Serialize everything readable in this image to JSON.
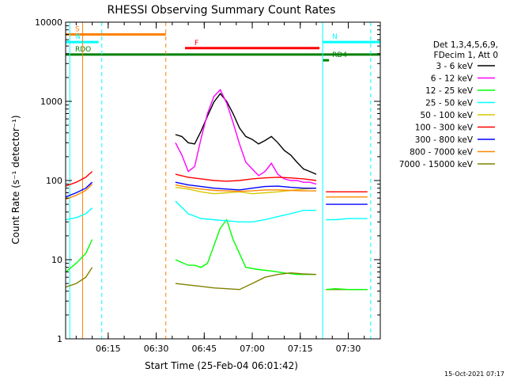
{
  "chart_data": {
    "type": "line",
    "title": "RHESSI Observing Summary Count Rates",
    "xlabel": "Start Time (25-Feb-04 06:01:42)",
    "ylabel": "Count Rate (s⁻¹ detector⁻¹)",
    "y_scale": "log",
    "xlim": [
      "06:01:42",
      "07:40:00"
    ],
    "ylim": [
      1,
      10000
    ],
    "x_ticks": [
      "06:15",
      "06:30",
      "06:45",
      "07:00",
      "07:15",
      "07:30"
    ],
    "y_ticks": [
      "1",
      "10",
      "100",
      "1000",
      "10000"
    ],
    "legend_header": [
      "Det 1,3,4,5,6,9,",
      "FDecim 1, Att 0"
    ],
    "series": [
      {
        "name": "3 - 6 keV",
        "color": "#000000",
        "x": [
          "06:36:00",
          "06:38:00",
          "06:40:00",
          "06:42:00",
          "06:44:00",
          "06:46:00",
          "06:48:00",
          "06:50:00",
          "06:52:00",
          "06:54:00",
          "06:56:00",
          "06:58:00",
          "07:00:00",
          "07:02:00",
          "07:04:00",
          "07:06:00",
          "07:08:00",
          "07:10:00",
          "07:12:00",
          "07:14:00",
          "07:16:00",
          "07:18:00",
          "07:20:00"
        ],
        "y": [
          380,
          360,
          300,
          290,
          420,
          650,
          980,
          1250,
          1000,
          700,
          460,
          360,
          330,
          290,
          320,
          360,
          300,
          240,
          210,
          170,
          140,
          130,
          120
        ]
      },
      {
        "name": "6 - 12 keV",
        "color": "#ff00ff",
        "x": [
          "06:36:00",
          "06:38:00",
          "06:40:00",
          "06:42:00",
          "06:44:00",
          "06:46:00",
          "06:48:00",
          "06:50:00",
          "06:52:00",
          "06:54:00",
          "06:56:00",
          "06:58:00",
          "07:00:00",
          "07:02:00",
          "07:04:00",
          "07:06:00",
          "07:08:00",
          "07:10:00",
          "07:12:00",
          "07:14:00",
          "07:16:00",
          "07:18:00",
          "07:20:00"
        ],
        "y": [
          300,
          210,
          130,
          150,
          340,
          700,
          1150,
          1400,
          950,
          540,
          290,
          170,
          140,
          115,
          130,
          165,
          120,
          105,
          100,
          100,
          95,
          95,
          90
        ]
      },
      {
        "name": "12 - 25 keV",
        "color": "#00ff00",
        "x": [
          "06:36:00",
          "06:40:00",
          "06:42:00",
          "06:44:00",
          "06:46:00",
          "06:48:00",
          "06:50:00",
          "06:52:00",
          "06:54:00",
          "06:58:00",
          "07:02:00",
          "07:06:00",
          "07:10:00",
          "07:14:00",
          "07:18:00",
          "07:20:00"
        ],
        "y": [
          10,
          8.5,
          8.5,
          8,
          9,
          15,
          25,
          32,
          18,
          8,
          7.5,
          7.2,
          6.8,
          6.5,
          6.5,
          6.5
        ]
      },
      {
        "name": "25 - 50 keV",
        "color": "#00ffff",
        "x": [
          "06:36:00",
          "06:40:00",
          "06:44:00",
          "06:48:00",
          "06:52:00",
          "06:56:00",
          "07:00:00",
          "07:04:00",
          "07:08:00",
          "07:12:00",
          "07:16:00",
          "07:20:00"
        ],
        "y": [
          55,
          38,
          33,
          32,
          31,
          30,
          30,
          32,
          35,
          38,
          42,
          42
        ]
      },
      {
        "name": "50 - 100 keV",
        "color": "#d8c800",
        "x": [
          "06:36:00",
          "06:40:00",
          "06:44:00",
          "06:48:00",
          "06:52:00",
          "06:56:00",
          "07:00:00",
          "07:04:00",
          "07:08:00",
          "07:12:00",
          "07:16:00",
          "07:20:00"
        ],
        "y": [
          82,
          78,
          72,
          68,
          70,
          72,
          68,
          70,
          72,
          75,
          78,
          80
        ]
      },
      {
        "name": "100 - 300 keV",
        "color": "#ff0000",
        "x": [
          "06:36:00",
          "06:40:00",
          "06:44:00",
          "06:48:00",
          "06:52:00",
          "06:56:00",
          "07:00:00",
          "07:04:00",
          "07:08:00",
          "07:12:00",
          "07:16:00",
          "07:20:00"
        ],
        "y": [
          120,
          110,
          105,
          100,
          98,
          100,
          105,
          108,
          110,
          108,
          105,
          100
        ]
      },
      {
        "name": "300 - 800 keV",
        "color": "#0000ff",
        "x": [
          "06:36:00",
          "06:40:00",
          "06:44:00",
          "06:48:00",
          "06:52:00",
          "06:56:00",
          "07:00:00",
          "07:04:00",
          "07:08:00",
          "07:12:00",
          "07:16:00",
          "07:20:00"
        ],
        "y": [
          95,
          88,
          84,
          80,
          78,
          76,
          80,
          84,
          85,
          82,
          80,
          80
        ]
      },
      {
        "name": "800 - 7000 keV",
        "color": "#ff8800",
        "x": [
          "06:36:00",
          "06:40:00",
          "06:44:00",
          "06:48:00",
          "06:52:00",
          "06:56:00",
          "07:00:00",
          "07:04:00",
          "07:08:00",
          "07:12:00",
          "07:16:00",
          "07:20:00"
        ],
        "y": [
          88,
          82,
          78,
          75,
          74,
          73,
          74,
          76,
          76,
          75,
          74,
          74
        ]
      },
      {
        "name": "7000 - 15000 keV",
        "color": "#808000",
        "x": [
          "06:36:00",
          "06:40:00",
          "06:44:00",
          "06:48:00",
          "06:52:00",
          "06:56:00",
          "07:00:00",
          "07:04:00",
          "07:08:00",
          "07:12:00",
          "07:16:00",
          "07:20:00"
        ],
        "y": [
          5,
          4.8,
          4.6,
          4.4,
          4.3,
          4.2,
          5,
          6,
          6.5,
          6.8,
          6.6,
          6.5
        ]
      }
    ],
    "pre_gap_data": {
      "x": [
        "06:01:42",
        "06:05:00",
        "06:08:00",
        "06:10:00"
      ],
      "series": [
        {
          "name": "100 - 300 keV",
          "color": "#ff0000",
          "y": [
            85,
            95,
            110,
            130
          ]
        },
        {
          "name": "300 - 800 keV",
          "color": "#0000ff",
          "y": [
            62,
            70,
            80,
            95
          ]
        },
        {
          "name": "800 - 7000 keV",
          "color": "#ff8800",
          "y": [
            58,
            65,
            75,
            90
          ]
        },
        {
          "name": "25 - 50 keV",
          "color": "#00ffff",
          "y": [
            32,
            34,
            38,
            45
          ]
        },
        {
          "name": "12 - 25 keV",
          "color": "#00ff00",
          "y": [
            7,
            9,
            12,
            18
          ]
        },
        {
          "name": "7000 - 15000 keV",
          "color": "#808000",
          "y": [
            4.5,
            5,
            6,
            8
          ]
        }
      ]
    },
    "post_data": {
      "x": [
        "07:23:00",
        "07:26:00",
        "07:30:00",
        "07:34:00",
        "07:36:00"
      ],
      "series": [
        {
          "name": "100 - 300 keV",
          "color": "#ff0000",
          "y": [
            72,
            72,
            72,
            72,
            72
          ]
        },
        {
          "name": "800 - 7000 keV",
          "color": "#ff8800",
          "y": [
            62,
            62,
            62,
            62,
            62
          ]
        },
        {
          "name": "300 - 800 keV",
          "color": "#0000ff",
          "y": [
            50,
            50,
            50,
            50,
            50
          ]
        },
        {
          "name": "25 - 50 keV",
          "color": "#00ffff",
          "y": [
            32,
            32,
            33,
            33,
            33
          ]
        },
        {
          "name": "7000 - 15000 keV",
          "color": "#808000",
          "y": [
            4.2,
            4.2,
            4.2,
            4.2,
            4.2
          ]
        },
        {
          "name": "12 - 25 keV",
          "color": "#00ff00",
          "y": [
            4.2,
            4.3,
            4.2,
            4.2,
            4.2
          ]
        }
      ]
    },
    "flags": [
      {
        "label": "S",
        "color": "#ff8000",
        "y": 7000,
        "x_start": "06:01:42",
        "x_end": "06:33:00"
      },
      {
        "label": "N",
        "color": "#00ffff",
        "y": 5600,
        "x_start": "06:01:42",
        "x_end": "06:12:00"
      },
      {
        "label": "N",
        "color": "#00ffff",
        "y": 5600,
        "x_start": "07:22:00",
        "x_end": "07:40:00"
      },
      {
        "label": "F",
        "color": "#ff0000",
        "y": 4700,
        "x_start": "06:39:00",
        "x_end": "07:21:00"
      },
      {
        "label": "RDO",
        "color": "#008000",
        "y": 3900,
        "x_start": "06:01:42",
        "x_end": "07:40:00"
      },
      {
        "label": "RD4",
        "color": "#008000",
        "y": 3300,
        "x_start": "07:22:00",
        "x_end": "07:24:00"
      }
    ],
    "vlines": [
      {
        "x": "06:03:00",
        "color": "#00ffff",
        "style": "solid"
      },
      {
        "x": "06:07:00",
        "color": "#ff8000",
        "style": "solid"
      },
      {
        "x": "06:13:00",
        "color": "#00ffff",
        "style": "dashed"
      },
      {
        "x": "06:33:00",
        "color": "#ff8000",
        "style": "dashed"
      },
      {
        "x": "07:22:00",
        "color": "#00ffff",
        "style": "solid"
      },
      {
        "x": "07:37:00",
        "color": "#00ffff",
        "style": "dashed"
      }
    ],
    "footer": "15-Oct-2021 07:17"
  }
}
